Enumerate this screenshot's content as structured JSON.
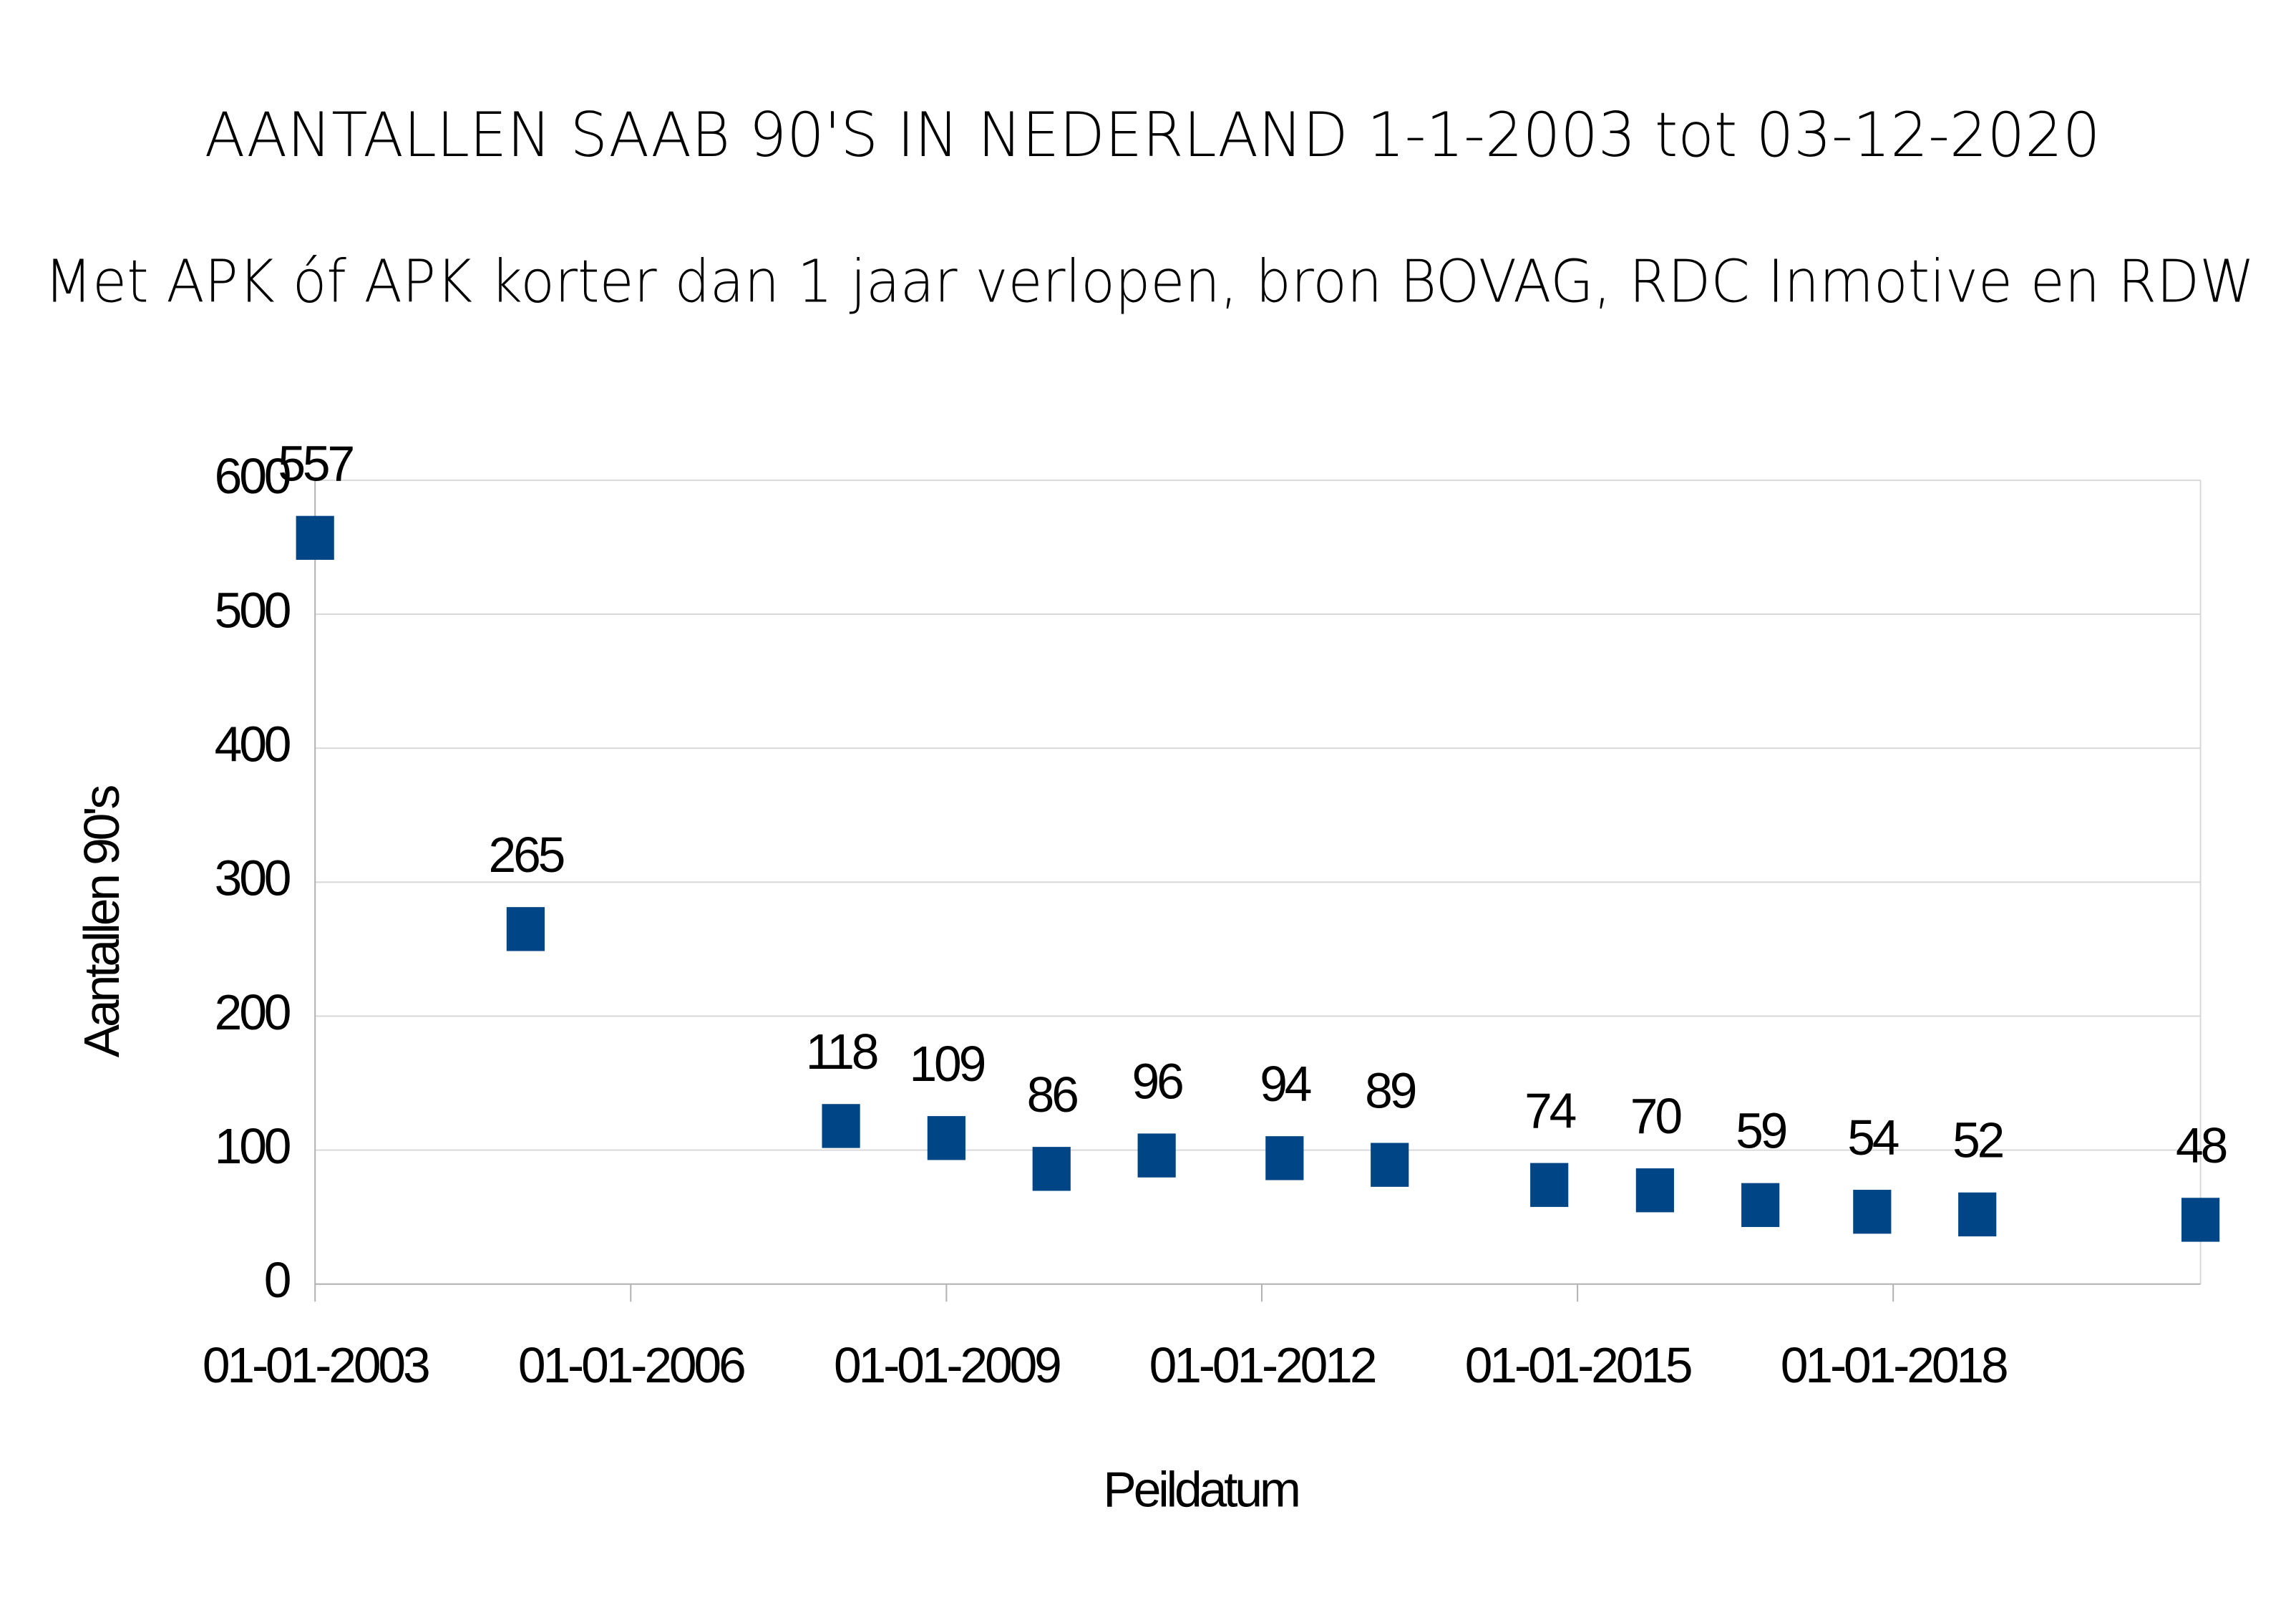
{
  "chart_data": {
    "type": "scatter",
    "title": "AANTALLEN SAAB 90'S IN NEDERLAND 1-1-2003 tot 03-12-2020",
    "subtitle": "Met APK óf APK korter dan 1 jaar verlopen, bron BOVAG, RDC Inmotive en RDW",
    "x_label": "Peildatum",
    "y_label": "Aantallen 90's",
    "x": [
      "2003-01-01",
      "2005-01-01",
      "2008-01-01",
      "2009-01-01",
      "2010-01-01",
      "2011-01-01",
      "2012-03-20",
      "2013-03-20",
      "2014-09-25",
      "2015-09-27",
      "2016-09-27",
      "2017-10-20",
      "2018-10-20",
      "2020-12-03"
    ],
    "series": [
      {
        "name": "Aantallen 90's",
        "color": "#004586",
        "values": [
          557,
          265,
          118,
          109,
          86,
          96,
          94,
          89,
          74,
          70,
          59,
          54,
          52,
          48
        ]
      }
    ],
    "xlim": [
      "2003-01-01",
      "2020-12-03"
    ],
    "xticks": [
      {
        "value": "2003-01-01",
        "label": "01-01-2003"
      },
      {
        "value": "2006-01-01",
        "label": "01-01-2006"
      },
      {
        "value": "2009-01-01",
        "label": "01-01-2009"
      },
      {
        "value": "2012-01-01",
        "label": "01-01-2012"
      },
      {
        "value": "2015-01-01",
        "label": "01-01-2015"
      },
      {
        "value": "2018-01-01",
        "label": "01-01-2018"
      }
    ],
    "ylim": [
      0,
      600
    ],
    "yticks": [
      0,
      100,
      200,
      300,
      400,
      500,
      600
    ],
    "grid": true
  }
}
